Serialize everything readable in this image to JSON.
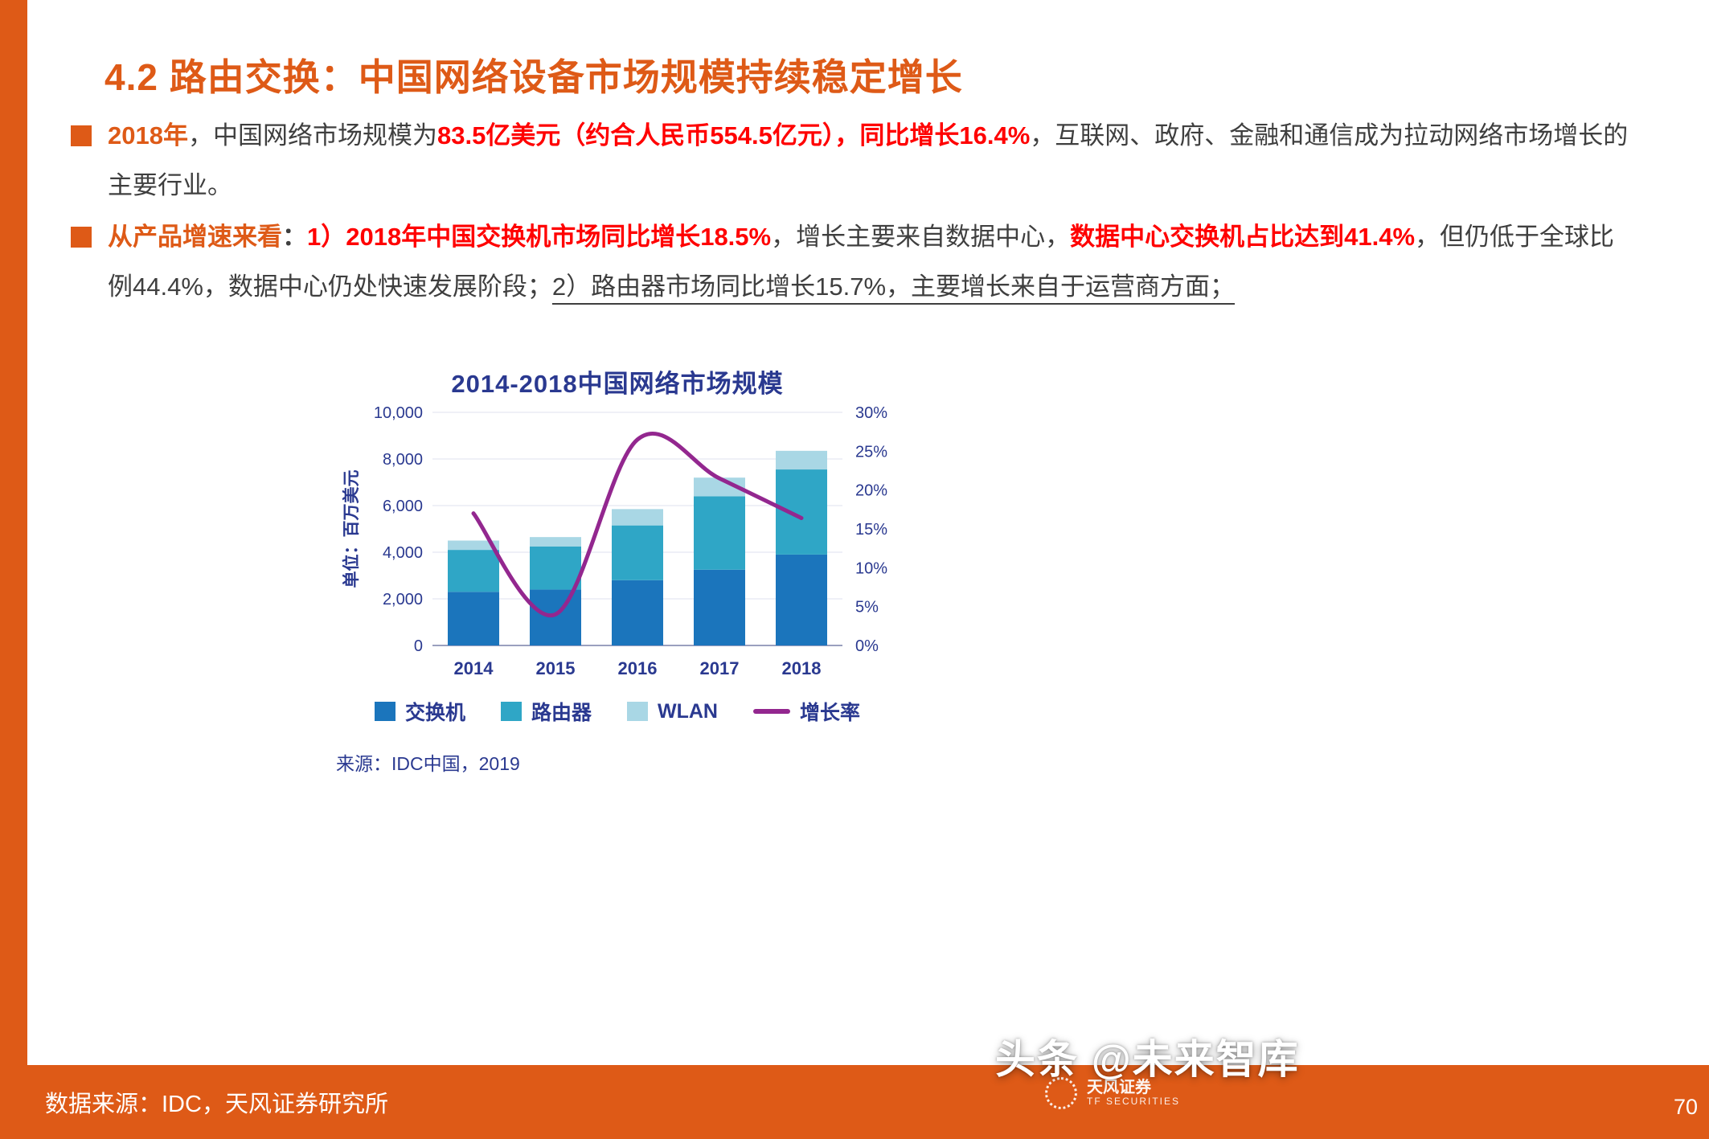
{
  "colors": {
    "accent_orange": "#DE5A17",
    "highlight_red": "#FF0000",
    "body_text": "#3F3F3F",
    "chart_navy": "#2A3990",
    "bar_switch": "#1B75BC",
    "bar_router": "#2FA6C6",
    "bar_wlan": "#A9D7E5",
    "growth_line": "#93278F"
  },
  "header": {
    "title": "4.2 路由交换：中国网络设备市场规模持续稳定增长"
  },
  "bullets": [
    {
      "segments": [
        {
          "t": "2018年",
          "s": "orange-bold"
        },
        {
          "t": "，中国网络市场规模为",
          "s": "normal"
        },
        {
          "t": "83.5亿美元（约合人民币554.5亿元），同比增长16.4%",
          "s": "red-bold"
        },
        {
          "t": "，互联网、政府、金融和通信成为拉动网络市场增长的主要行业。",
          "s": "normal"
        }
      ]
    },
    {
      "segments": [
        {
          "t": "从产品增速来看",
          "s": "orange-bold"
        },
        {
          "t": "：",
          "s": "normal-bold"
        },
        {
          "t": "1）2018年中国交换机市场同比增长18.5%",
          "s": "red-bold"
        },
        {
          "t": "，增长主要来自数据中心，",
          "s": "normal"
        },
        {
          "t": "数据中心交换机占比达到41.4%",
          "s": "red-bold"
        },
        {
          "t": "，但仍低于全球比例44.4%，数据中心仍处快速发展阶段；",
          "s": "normal"
        },
        {
          "t": "2）路由器市场同比增长15.7%，主要增长来自于运营商方面；",
          "s": "underline"
        }
      ]
    }
  ],
  "chart_data": {
    "type": "bar+line",
    "title": "2014-2018中国网络市场规模",
    "source_note": "来源：IDC中国，2019",
    "categories": [
      "2014",
      "2015",
      "2016",
      "2017",
      "2018"
    ],
    "series": [
      {
        "name": "交换机",
        "color": "#1B75BC",
        "values": [
          2300,
          2400,
          2800,
          3250,
          3900
        ]
      },
      {
        "name": "路由器",
        "color": "#2FA6C6",
        "values": [
          1800,
          1850,
          2350,
          3150,
          3650
        ]
      },
      {
        "name": "WLAN",
        "color": "#A9D7E5",
        "values": [
          400,
          400,
          700,
          800,
          800
        ]
      }
    ],
    "stacked": true,
    "line": {
      "name": "增长率",
      "color": "#93278F",
      "axis": "right",
      "unit": "%",
      "values": [
        17,
        4,
        26.5,
        21.5,
        16.4
      ]
    },
    "axes": {
      "left": {
        "title": "单位：百万美元",
        "min": 0,
        "max": 10000,
        "tick_values": [
          0,
          2000,
          4000,
          6000,
          8000,
          10000
        ],
        "tick_labels": [
          "0",
          "2,000",
          "4,000",
          "6,000",
          "8,000",
          "10,000"
        ]
      },
      "right": {
        "min": 0,
        "max": 30,
        "tick_values": [
          0,
          5,
          10,
          15,
          20,
          25,
          30
        ],
        "tick_labels": [
          "0%",
          "5%",
          "10%",
          "15%",
          "20%",
          "25%",
          "30%"
        ]
      }
    },
    "grid": true,
    "legend_position": "bottom",
    "text_color": "#2A3990"
  },
  "footer": {
    "source": "数据来源：IDC，天风证券研究所",
    "watermark": "头条 @未来智库",
    "logo_cn": "天风证券",
    "logo_en": "TF SECURITIES",
    "page_number": "70"
  }
}
